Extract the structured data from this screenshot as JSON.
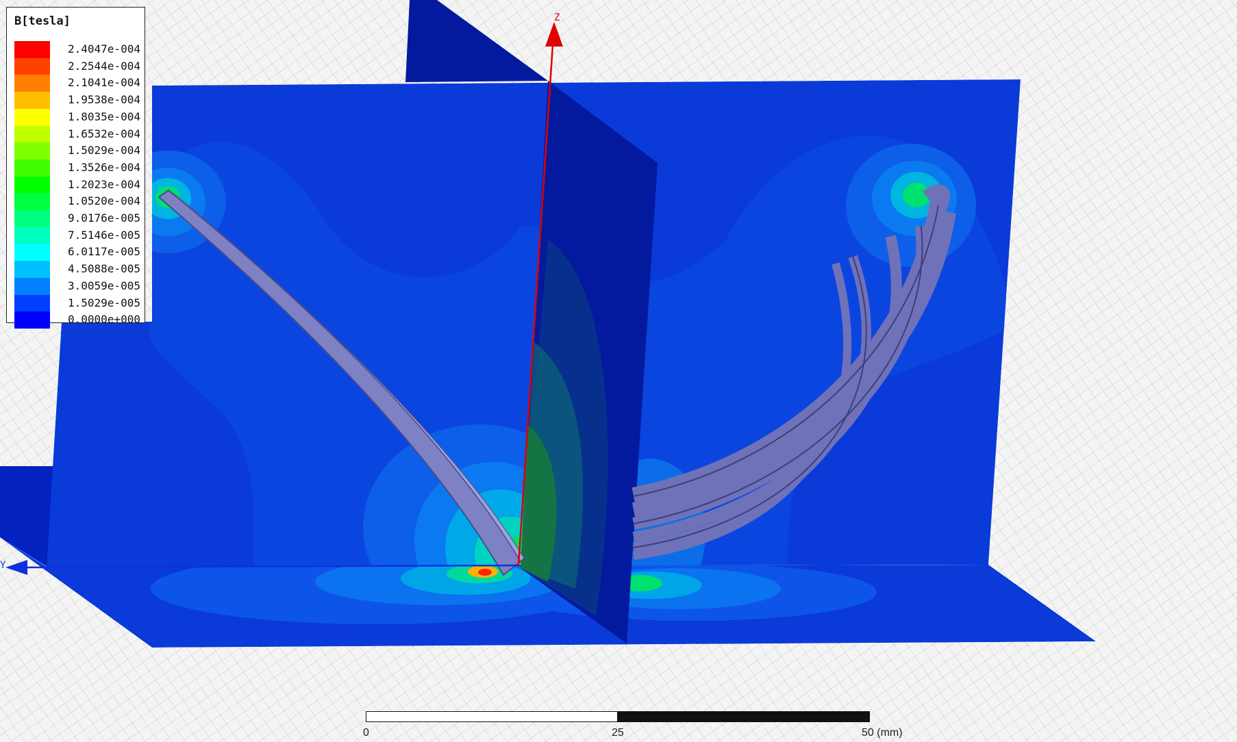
{
  "legend": {
    "title": "B[tesla]",
    "entries": [
      {
        "value": "2.4047e-004",
        "color": "#ff0000"
      },
      {
        "value": "2.2544e-004",
        "color": "#ff4000"
      },
      {
        "value": "2.1041e-004",
        "color": "#ff8000"
      },
      {
        "value": "1.9538e-004",
        "color": "#ffbf00"
      },
      {
        "value": "1.8035e-004",
        "color": "#ffff00"
      },
      {
        "value": "1.6532e-004",
        "color": "#bfff00"
      },
      {
        "value": "1.5029e-004",
        "color": "#80ff00"
      },
      {
        "value": "1.3526e-004",
        "color": "#40ff00"
      },
      {
        "value": "1.2023e-004",
        "color": "#00ff00"
      },
      {
        "value": "1.0520e-004",
        "color": "#00ff40"
      },
      {
        "value": "9.0176e-005",
        "color": "#00ff80"
      },
      {
        "value": "7.5146e-005",
        "color": "#00ffbf"
      },
      {
        "value": "6.0117e-005",
        "color": "#00ffff"
      },
      {
        "value": "4.5088e-005",
        "color": "#00bfff"
      },
      {
        "value": "3.0059e-005",
        "color": "#0080ff"
      },
      {
        "value": "1.5029e-005",
        "color": "#0040ff"
      },
      {
        "value": "0.0000e+000",
        "color": "#0000ff"
      }
    ]
  },
  "axes": {
    "z_label": "Z",
    "y_label": "Y",
    "z_color": "#e00000",
    "y_color": "#1030e0"
  },
  "scale_bar": {
    "label_start": "0",
    "label_mid": "25",
    "label_end": "50 (mm)"
  },
  "colors": {
    "background": "#f4f4f4",
    "plane_base": "#0a3ee0",
    "coil": "#6f72b8"
  }
}
